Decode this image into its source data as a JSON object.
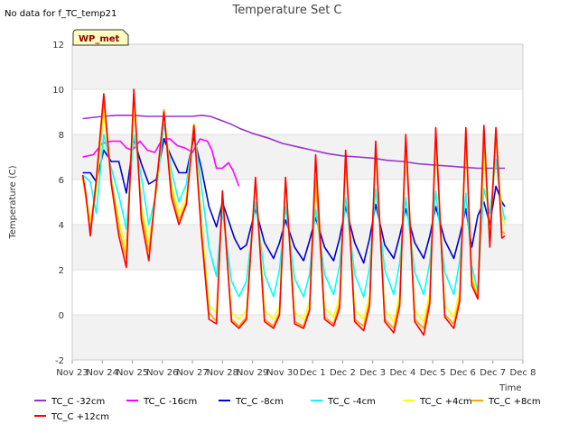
{
  "chart_data": {
    "type": "line",
    "title": "Temperature Set C",
    "note": "No data for f_TC_temp21",
    "badge": "WP_met",
    "xlabel": "Time",
    "ylabel": "Temperature (C)",
    "ylim": [
      -2,
      12
    ],
    "yticks": [
      -2,
      0,
      2,
      4,
      6,
      8,
      10,
      12
    ],
    "xlim": [
      0,
      15
    ],
    "x_ticks": [
      {
        "pos": 0,
        "label": "Nov 23"
      },
      {
        "pos": 1,
        "label": "Nov 24"
      },
      {
        "pos": 2,
        "label": "Nov 25"
      },
      {
        "pos": 3,
        "label": "Nov 26"
      },
      {
        "pos": 4,
        "label": "Nov 27"
      },
      {
        "pos": 5,
        "label": "Nov 28"
      },
      {
        "pos": 6,
        "label": "Nov 29"
      },
      {
        "pos": 7,
        "label": "Nov 30"
      },
      {
        "pos": 8,
        "label": "Dec 1"
      },
      {
        "pos": 9,
        "label": "Dec 2"
      },
      {
        "pos": 10,
        "label": "Dec 3"
      },
      {
        "pos": 11,
        "label": "Dec 4"
      },
      {
        "pos": 12,
        "label": "Dec 5"
      },
      {
        "pos": 13,
        "label": "Dec 6"
      },
      {
        "pos": 14,
        "label": "Dec 7"
      },
      {
        "pos": 15,
        "label": "Dec 8"
      }
    ],
    "grid": "horizontal bands",
    "legend_placement": "bottom",
    "series": [
      {
        "name": "TC_C -32cm",
        "color": "#9a32cd",
        "x": [
          0.35,
          1.0,
          1.5,
          2.0,
          2.5,
          3.0,
          3.5,
          4.0,
          4.3,
          4.6,
          5.0,
          5.3,
          5.6,
          6.0,
          6.5,
          7.0,
          7.5,
          8.0,
          8.5,
          9.0,
          9.5,
          10.0,
          10.5,
          11.0,
          11.5,
          12.0,
          12.5,
          13.0,
          13.5,
          14.0,
          14.4
        ],
        "values": [
          8.7,
          8.8,
          8.85,
          8.85,
          8.8,
          8.8,
          8.8,
          8.8,
          8.85,
          8.8,
          8.6,
          8.45,
          8.25,
          8.05,
          7.85,
          7.6,
          7.45,
          7.3,
          7.15,
          7.05,
          7.0,
          6.95,
          6.85,
          6.8,
          6.7,
          6.65,
          6.6,
          6.55,
          6.5,
          6.5,
          6.5
        ]
      },
      {
        "name": "TC_C -16cm",
        "color": "#ff00ff",
        "x": [
          0.35,
          0.7,
          1.0,
          1.3,
          1.6,
          1.8,
          2.0,
          2.25,
          2.5,
          2.75,
          3.0,
          3.25,
          3.5,
          3.75,
          4.0,
          4.25,
          4.5,
          4.65,
          4.8,
          5.0,
          5.2,
          5.35,
          5.55
        ],
        "values": [
          7.0,
          7.1,
          7.6,
          7.7,
          7.7,
          7.4,
          7.3,
          7.7,
          7.3,
          7.2,
          7.8,
          7.8,
          7.5,
          7.4,
          7.2,
          7.8,
          7.7,
          7.3,
          6.5,
          6.5,
          6.75,
          6.4,
          5.7
        ]
      },
      {
        "name": "TC_C -8cm",
        "color": "#0000cd",
        "x": [
          0.35,
          0.6,
          0.8,
          1.05,
          1.3,
          1.55,
          1.8,
          2.05,
          2.3,
          2.55,
          2.8,
          3.05,
          3.3,
          3.55,
          3.8,
          4.05,
          4.3,
          4.55,
          4.8,
          5.0,
          5.4,
          5.6,
          5.8,
          6.1,
          6.4,
          6.7,
          6.9,
          7.1,
          7.4,
          7.7,
          7.9,
          8.1,
          8.4,
          8.7,
          8.9,
          9.1,
          9.4,
          9.7,
          9.9,
          10.1,
          10.4,
          10.7,
          10.9,
          11.1,
          11.4,
          11.7,
          11.9,
          12.1,
          12.4,
          12.7,
          12.9,
          13.1,
          13.3,
          13.5,
          13.7,
          13.9,
          14.1,
          14.3,
          14.4
        ],
        "values": [
          6.3,
          6.3,
          5.9,
          7.3,
          6.8,
          6.8,
          5.4,
          7.8,
          6.7,
          5.8,
          6.0,
          7.8,
          7.0,
          6.3,
          6.3,
          7.9,
          6.5,
          4.8,
          3.9,
          5.0,
          3.4,
          2.9,
          3.1,
          4.7,
          3.2,
          2.5,
          3.2,
          4.2,
          3.0,
          2.4,
          3.3,
          4.3,
          3.0,
          2.4,
          3.4,
          4.8,
          3.2,
          2.3,
          3.4,
          4.9,
          3.1,
          2.5,
          3.5,
          4.7,
          3.2,
          2.5,
          3.5,
          4.8,
          3.3,
          2.5,
          3.5,
          4.7,
          3.0,
          4.4,
          5.0,
          4.0,
          5.7,
          5.0,
          4.8
        ]
      },
      {
        "name": "TC_C -4cm",
        "color": "#00ffff",
        "x": [
          0.35,
          0.6,
          0.8,
          1.05,
          1.3,
          1.55,
          1.8,
          2.05,
          2.3,
          2.55,
          2.8,
          3.05,
          3.3,
          3.55,
          3.8,
          4.05,
          4.3,
          4.55,
          4.8,
          5.0,
          5.3,
          5.55,
          5.8,
          6.1,
          6.4,
          6.7,
          6.9,
          7.1,
          7.4,
          7.7,
          7.9,
          8.1,
          8.4,
          8.7,
          8.9,
          9.1,
          9.4,
          9.7,
          9.9,
          10.1,
          10.4,
          10.7,
          10.9,
          11.1,
          11.4,
          11.7,
          11.9,
          12.1,
          12.4,
          12.7,
          12.9,
          13.1,
          13.3,
          13.5,
          13.7,
          13.9,
          14.1,
          14.3,
          14.4
        ],
        "values": [
          6.2,
          5.9,
          4.5,
          8.0,
          6.5,
          5.3,
          3.8,
          8.0,
          6.1,
          4.0,
          5.4,
          8.5,
          6.4,
          5.0,
          5.8,
          8.2,
          5.7,
          3.0,
          1.7,
          4.6,
          1.5,
          0.8,
          1.5,
          5.0,
          1.8,
          0.8,
          2.0,
          4.8,
          1.6,
          0.8,
          1.8,
          4.7,
          1.8,
          0.9,
          2.2,
          5.2,
          1.8,
          0.8,
          2.1,
          5.6,
          2.0,
          0.9,
          2.3,
          5.2,
          1.9,
          0.9,
          2.3,
          5.5,
          1.9,
          0.9,
          2.4,
          5.4,
          2.2,
          1.0,
          5.6,
          4.5,
          6.9,
          4.8,
          4.2
        ]
      },
      {
        "name": "TC_C +4cm",
        "color": "#ffff00",
        "x": [
          0.35,
          0.6,
          0.8,
          1.05,
          1.3,
          1.55,
          1.8,
          2.05,
          2.3,
          2.55,
          2.8,
          3.05,
          3.3,
          3.55,
          3.8,
          4.05,
          4.3,
          4.55,
          4.8,
          5.0,
          5.3,
          5.55,
          5.8,
          6.1,
          6.4,
          6.7,
          6.9,
          7.1,
          7.4,
          7.7,
          7.9,
          8.1,
          8.4,
          8.7,
          8.9,
          9.1,
          9.4,
          9.7,
          9.9,
          10.1,
          10.4,
          10.7,
          10.9,
          11.1,
          11.4,
          11.7,
          11.9,
          12.1,
          12.4,
          12.7,
          12.9,
          13.1,
          13.3,
          13.5,
          13.7,
          13.9,
          14.1,
          14.3,
          14.4
        ],
        "values": [
          6.0,
          4.2,
          5.5,
          9.0,
          6.0,
          4.2,
          2.8,
          9.2,
          4.8,
          3.2,
          5.5,
          9.0,
          5.8,
          4.5,
          5.2,
          8.5,
          4.2,
          0.4,
          0.1,
          5.2,
          0.1,
          -0.2,
          0.2,
          6.0,
          0.2,
          -0.2,
          0.4,
          6.0,
          0.1,
          -0.2,
          0.6,
          6.0,
          0.3,
          -0.1,
          0.8,
          7.0,
          0.2,
          -0.2,
          0.9,
          7.2,
          0.2,
          -0.3,
          0.9,
          7.6,
          0.2,
          -0.3,
          1.0,
          7.8,
          0.4,
          -0.1,
          1.1,
          7.8,
          1.8,
          0.8,
          7.2,
          3.2,
          7.9,
          4.4,
          4.0
        ]
      },
      {
        "name": "TC_C +8cm",
        "color": "#ffa500",
        "x": [
          0.35,
          0.6,
          0.8,
          1.05,
          1.3,
          1.55,
          1.8,
          2.05,
          2.3,
          2.55,
          2.8,
          3.05,
          3.3,
          3.55,
          3.8,
          4.05,
          4.3,
          4.55,
          4.8,
          5.0,
          5.3,
          5.55,
          5.8,
          6.1,
          6.4,
          6.7,
          6.9,
          7.1,
          7.4,
          7.7,
          7.9,
          8.1,
          8.4,
          8.7,
          8.9,
          9.1,
          9.4,
          9.7,
          9.9,
          10.1,
          10.4,
          10.7,
          10.9,
          11.1,
          11.4,
          11.7,
          11.9,
          12.1,
          12.4,
          12.7,
          12.9,
          13.1,
          13.3,
          13.5,
          13.7,
          13.9,
          14.1,
          14.3,
          14.4
        ],
        "values": [
          6.1,
          3.8,
          5.8,
          9.5,
          6.0,
          3.8,
          2.5,
          9.8,
          4.5,
          2.8,
          5.6,
          9.1,
          5.5,
          4.2,
          5.0,
          8.4,
          3.8,
          0.1,
          -0.3,
          5.4,
          -0.2,
          -0.5,
          -0.1,
          6.0,
          -0.2,
          -0.5,
          0.1,
          6.0,
          -0.3,
          -0.5,
          0.3,
          6.1,
          -0.1,
          -0.4,
          0.5,
          7.0,
          -0.2,
          -0.5,
          0.6,
          7.4,
          -0.2,
          -0.6,
          0.6,
          7.7,
          -0.2,
          -0.6,
          0.7,
          8.0,
          0.0,
          -0.4,
          0.8,
          8.2,
          1.5,
          0.8,
          7.8,
          3.3,
          8.3,
          3.7,
          3.6
        ]
      },
      {
        "name": "TC_C +12cm",
        "color": "#ff0000",
        "x": [
          0.35,
          0.45,
          0.6,
          0.8,
          1.05,
          1.3,
          1.55,
          1.8,
          2.05,
          2.3,
          2.55,
          2.8,
          3.05,
          3.3,
          3.55,
          3.8,
          4.05,
          4.3,
          4.55,
          4.8,
          5.0,
          5.3,
          5.55,
          5.8,
          6.1,
          6.4,
          6.7,
          6.9,
          7.1,
          7.4,
          7.7,
          7.9,
          8.1,
          8.4,
          8.7,
          8.9,
          9.1,
          9.4,
          9.7,
          9.9,
          10.1,
          10.4,
          10.7,
          10.9,
          11.1,
          11.4,
          11.7,
          11.9,
          12.1,
          12.4,
          12.7,
          12.9,
          13.1,
          13.3,
          13.5,
          13.7,
          13.9,
          14.1,
          14.3,
          14.4
        ],
        "values": [
          6.2,
          5.4,
          3.5,
          6.0,
          9.8,
          5.8,
          3.5,
          2.1,
          10.0,
          4.2,
          2.4,
          5.8,
          9.0,
          5.2,
          4.0,
          4.9,
          8.4,
          3.6,
          -0.2,
          -0.4,
          5.5,
          -0.3,
          -0.6,
          -0.2,
          6.1,
          -0.3,
          -0.6,
          0.0,
          6.1,
          -0.4,
          -0.6,
          0.2,
          7.1,
          -0.2,
          -0.5,
          0.3,
          7.3,
          -0.3,
          -0.7,
          0.4,
          7.7,
          -0.3,
          -0.8,
          0.4,
          8.0,
          -0.3,
          -0.9,
          0.5,
          8.3,
          -0.1,
          -0.6,
          0.6,
          8.3,
          1.3,
          0.7,
          8.4,
          3.0,
          8.3,
          3.4,
          3.5
        ]
      }
    ]
  }
}
